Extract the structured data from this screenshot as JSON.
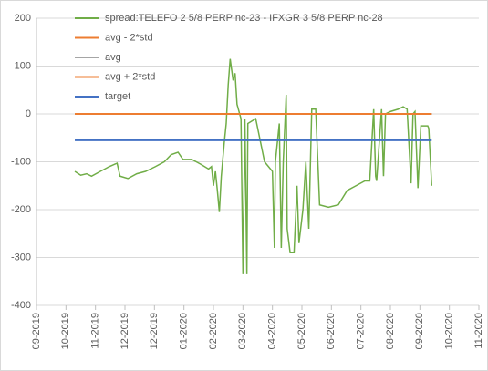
{
  "chart_data": {
    "type": "line",
    "xlim": [
      0,
      450
    ],
    "xticks": [
      {
        "value": 0,
        "label": "09-2019"
      },
      {
        "value": 30,
        "label": "10-2019"
      },
      {
        "value": 60,
        "label": "11-2019"
      },
      {
        "value": 90,
        "label": "12-2019"
      },
      {
        "value": 120,
        "label": "12-2019"
      },
      {
        "value": 150,
        "label": "01-2020"
      },
      {
        "value": 180,
        "label": "02-2020"
      },
      {
        "value": 210,
        "label": "03-2020"
      },
      {
        "value": 240,
        "label": "04-2020"
      },
      {
        "value": 270,
        "label": "05-2020"
      },
      {
        "value": 300,
        "label": "06-2020"
      },
      {
        "value": 330,
        "label": "07-2020"
      },
      {
        "value": 360,
        "label": "08-2020"
      },
      {
        "value": 390,
        "label": "09-2020"
      },
      {
        "value": 420,
        "label": "10-2020"
      },
      {
        "value": 450,
        "label": "11-2020"
      }
    ],
    "ylim": [
      -400,
      200
    ],
    "yticks": [
      200,
      100,
      0,
      -100,
      -200,
      -300,
      -400
    ],
    "grid": true,
    "series": [
      {
        "name": "spread:TELEFO 2 5/8 PERP nc-23 - IFXGR 3 5/8 PERP nc-28",
        "color": "#70ad47",
        "x": [
          39,
          45,
          51,
          56,
          65,
          74,
          82,
          85,
          93,
          102,
          111,
          121,
          130,
          137,
          144,
          149,
          158,
          167,
          175,
          178,
          180,
          182,
          184,
          186,
          188,
          191,
          193,
          195,
          197,
          200,
          202,
          204,
          208,
          210,
          212,
          214,
          215,
          223,
          232,
          240,
          242,
          243,
          247,
          249,
          251,
          254,
          255,
          258,
          262,
          265,
          267,
          271,
          274,
          277,
          280,
          284,
          288,
          297,
          307,
          316,
          325,
          334,
          339,
          343,
          345,
          346,
          351,
          353,
          355,
          360,
          368,
          373,
          377,
          381,
          383,
          385,
          388,
          391,
          398,
          399,
          402
        ],
        "values": [
          -120,
          -128,
          -125,
          -130,
          -120,
          -110,
          -103,
          -130,
          -135,
          -125,
          -120,
          -110,
          -100,
          -85,
          -80,
          -95,
          -95,
          -105,
          -115,
          -110,
          -150,
          -120,
          -160,
          -205,
          -130,
          -60,
          -20,
          60,
          115,
          70,
          85,
          20,
          -10,
          -335,
          -10,
          -335,
          -20,
          -10,
          -100,
          -120,
          -280,
          -100,
          -20,
          -280,
          -100,
          40,
          -240,
          -290,
          -290,
          -150,
          -270,
          -200,
          -100,
          -240,
          10,
          10,
          -190,
          -195,
          -190,
          -160,
          -150,
          -140,
          -140,
          10,
          -130,
          -140,
          10,
          -130,
          0,
          5,
          10,
          15,
          10,
          -145,
          0,
          5,
          -155,
          -25,
          -25,
          -30,
          -150
        ]
      },
      {
        "name": "avg - 2*std",
        "color": "#ed7d31",
        "x": [
          39,
          402
        ],
        "values": [
          0,
          0
        ]
      },
      {
        "name": "avg",
        "color": "#a5a5a5",
        "x": [
          39,
          402
        ],
        "values": [
          0,
          0
        ]
      },
      {
        "name": "avg + 2*std",
        "color": "#ed7d31",
        "x": [
          39,
          402
        ],
        "values": [
          0,
          0
        ]
      },
      {
        "name": "target",
        "color": "#4472c4",
        "x": [
          39,
          402
        ],
        "values": [
          -55,
          -55
        ]
      }
    ]
  }
}
